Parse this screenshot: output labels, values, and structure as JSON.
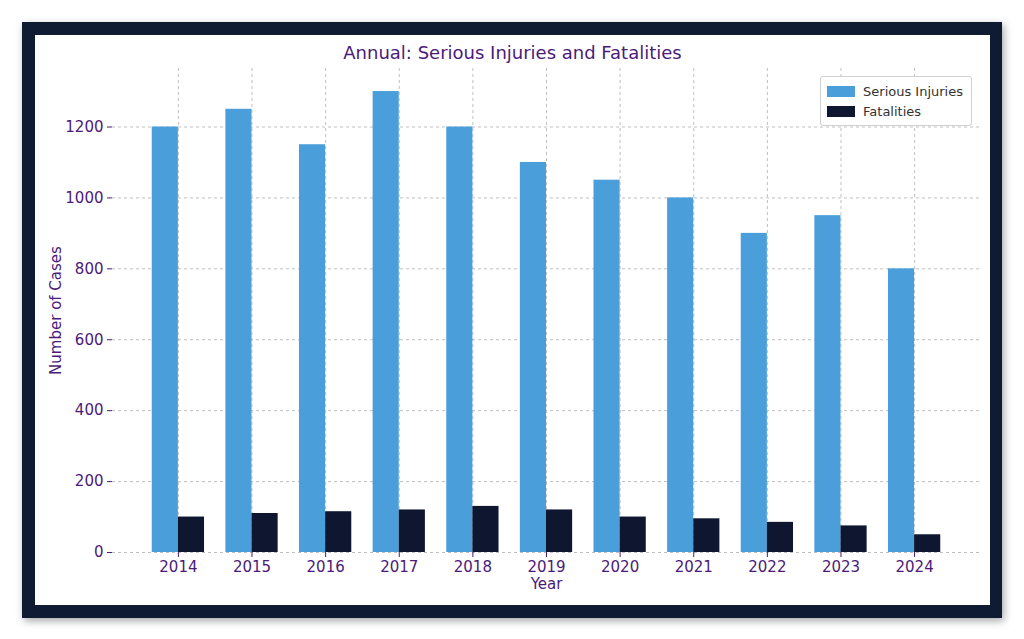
{
  "chart_data": {
    "type": "bar",
    "title": "Annual: Serious Injuries and Fatalities",
    "x_label": "Year",
    "y_label": "Number of Cases",
    "categories": [
      "2014",
      "2015",
      "2016",
      "2017",
      "2018",
      "2019",
      "2020",
      "2021",
      "2022",
      "2023",
      "2024"
    ],
    "series": [
      {
        "name": "Serious Injuries",
        "color": "#4a9fda",
        "values": [
          1200,
          1250,
          1150,
          1300,
          1200,
          1100,
          1050,
          1000,
          900,
          950,
          800
        ]
      },
      {
        "name": "Fatalities",
        "color": "#0e1630",
        "values": [
          100,
          110,
          115,
          120,
          130,
          120,
          100,
          95,
          85,
          75,
          50
        ]
      }
    ],
    "ylim": [
      0,
      1365
    ],
    "yticks": [
      0,
      200,
      400,
      600,
      800,
      1000,
      1200
    ],
    "grid": true,
    "legend": "upper right"
  }
}
